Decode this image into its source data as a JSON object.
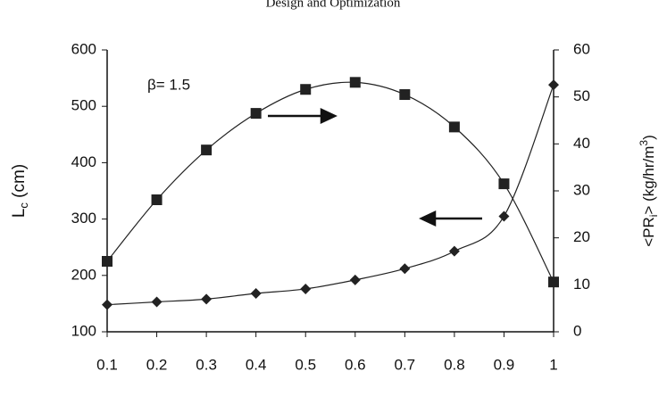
{
  "chart_data": {
    "type": "line",
    "title": "Design and Optimization",
    "annotation": "β= 1.5",
    "y_label": [
      "L",
      "c",
      " (cm)"
    ],
    "y2_label": [
      "<PR",
      "i",
      "> (kg/hr/m",
      "3",
      ")"
    ],
    "x": [
      0.1,
      0.2,
      0.3,
      0.4,
      0.5,
      0.6,
      0.7,
      0.8,
      0.9,
      1
    ],
    "xlim": [
      0.1,
      1
    ],
    "xticks": [
      0.1,
      0.2,
      0.3,
      0.4,
      0.5,
      0.6,
      0.7,
      0.8,
      0.9,
      1
    ],
    "ylim": [
      100,
      600
    ],
    "yticks": [
      100,
      200,
      300,
      400,
      500,
      600
    ],
    "y2lim": [
      0,
      60
    ],
    "y2ticks": [
      0,
      10,
      20,
      30,
      40,
      50,
      60
    ],
    "series": [
      {
        "color": "#222",
        "marker": "diamond",
        "values": [
          148,
          153,
          158,
          168,
          176,
          192,
          212,
          243,
          305,
          538
        ]
      },
      {
        "color": "#222",
        "marker": "square",
        "axis": "y2",
        "values": [
          15.0,
          28.1,
          38.7,
          46.5,
          51.6,
          53.1,
          50.5,
          43.6,
          31.5,
          10.6
        ]
      }
    ]
  }
}
